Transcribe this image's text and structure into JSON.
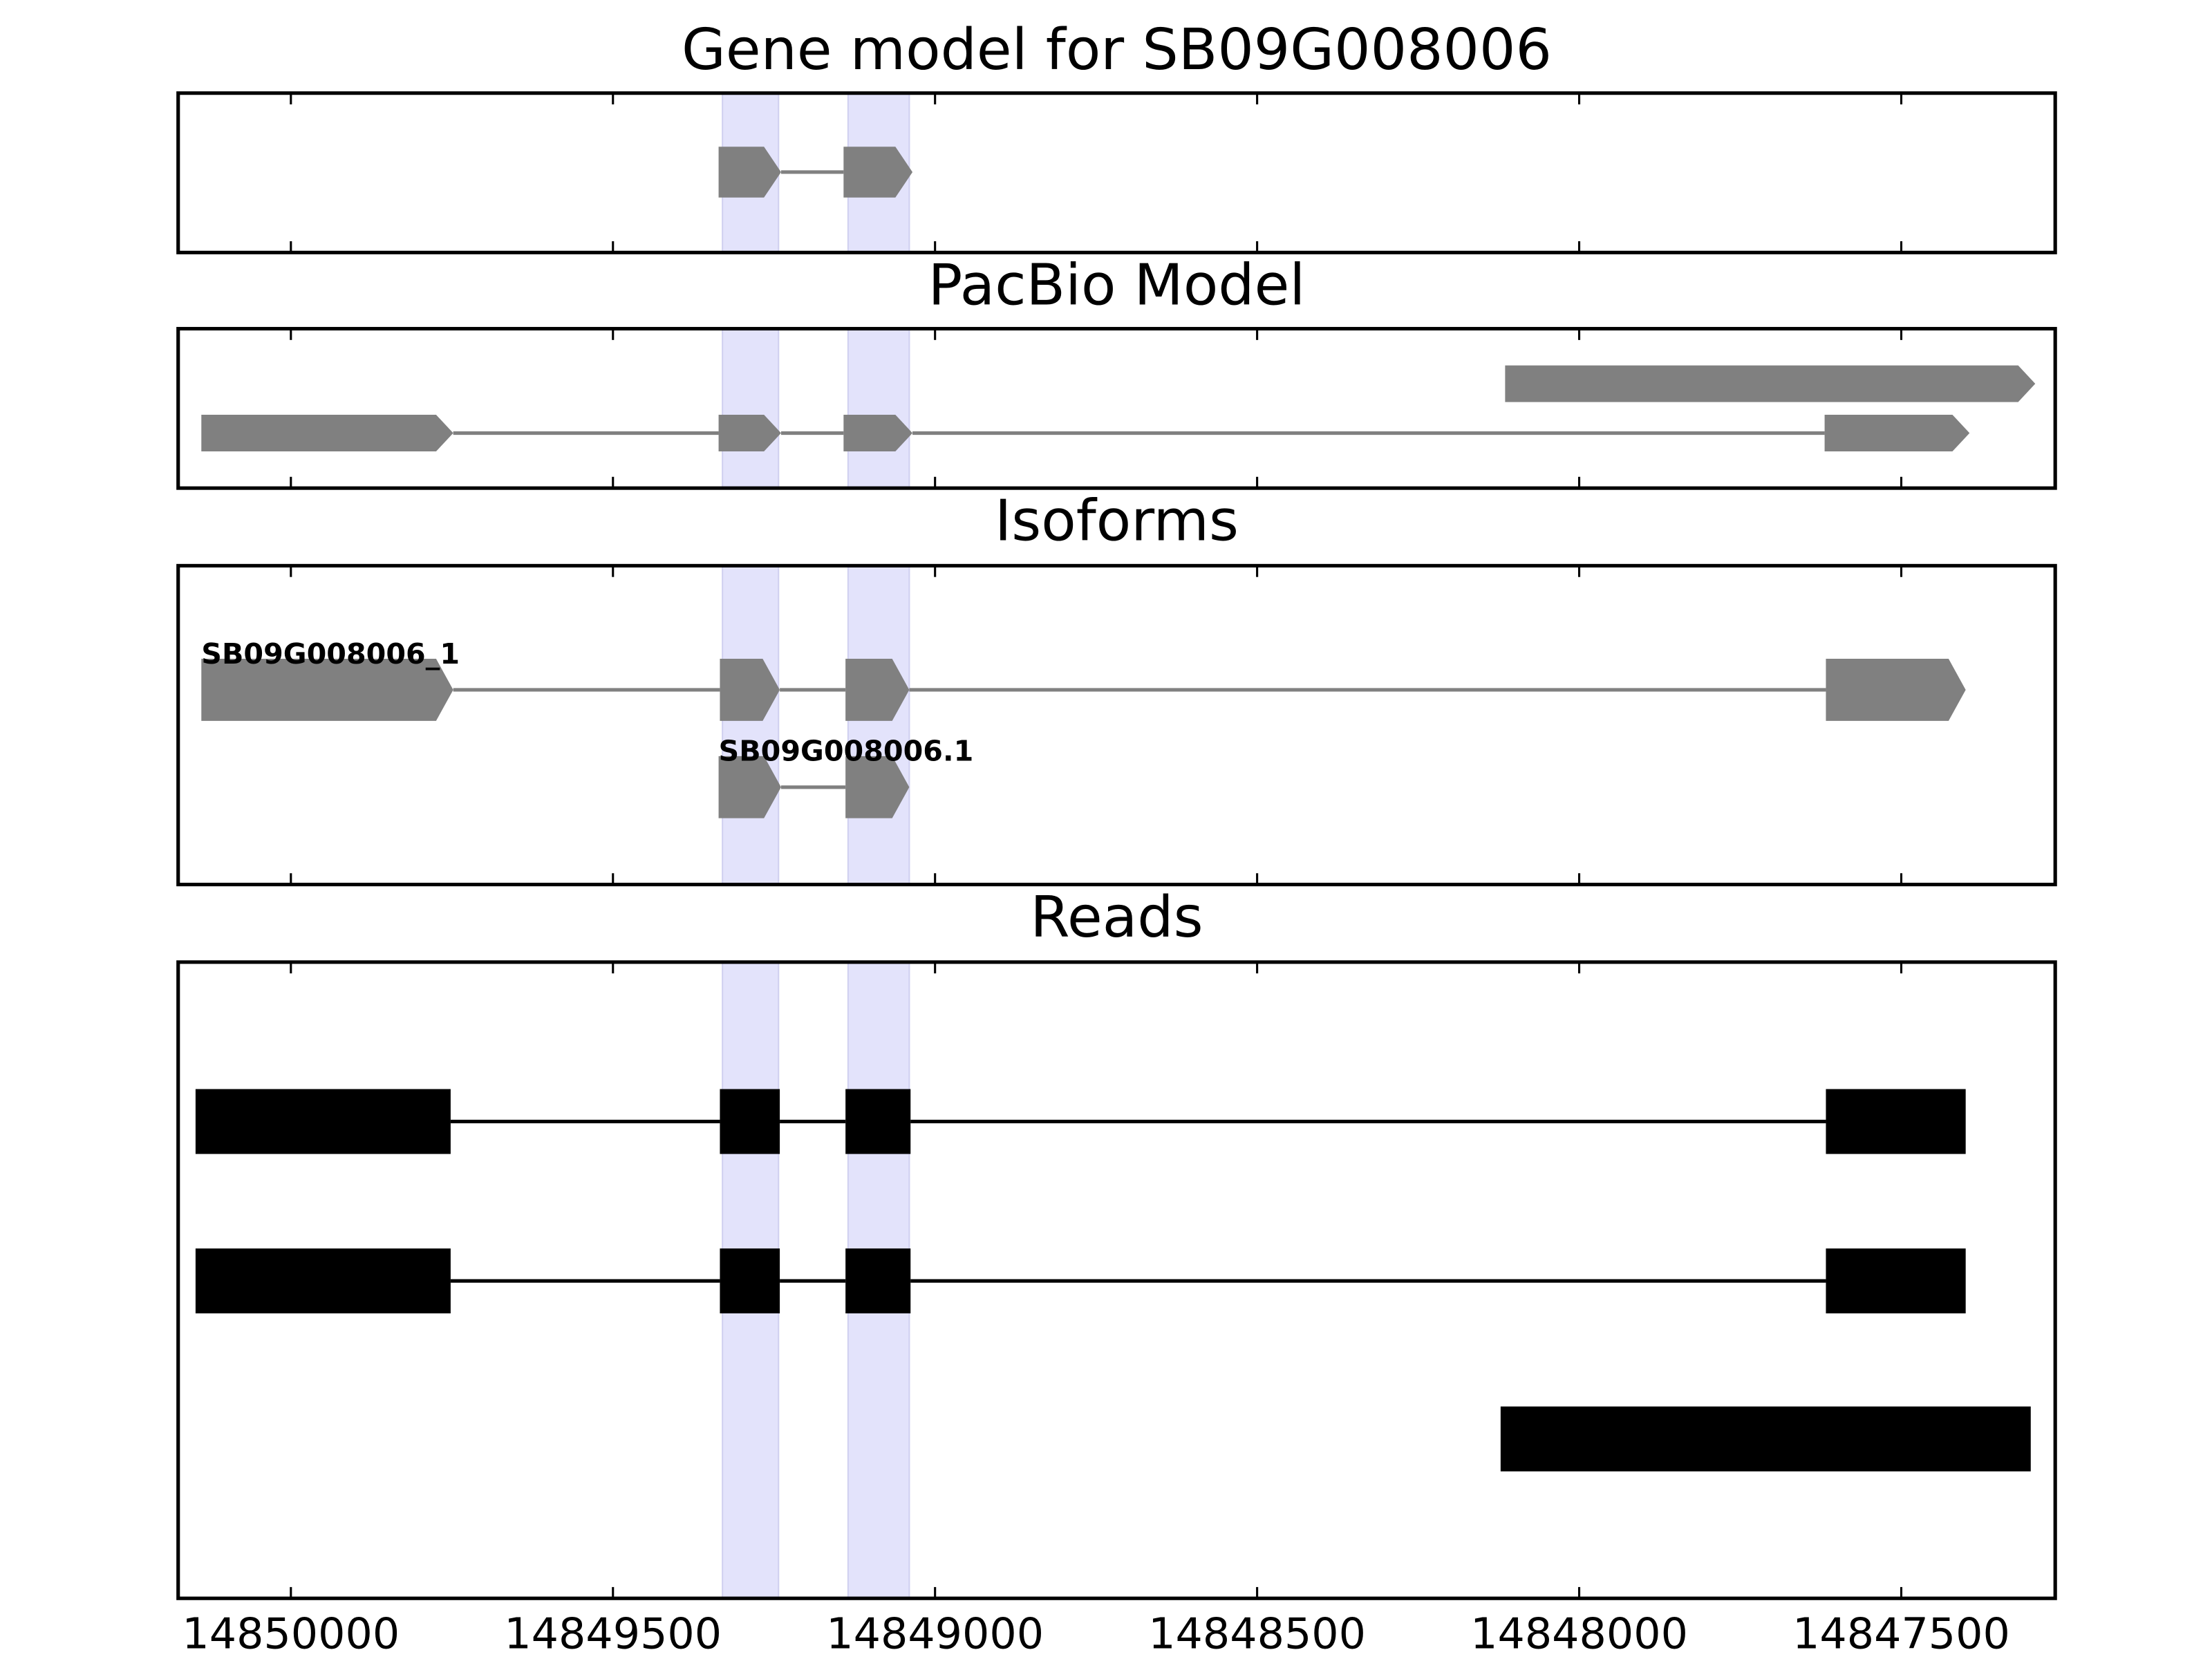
{
  "chart_data": [
    {
      "type": "gene_track",
      "title": "Gene model for SB09G008006",
      "color": "#808080",
      "arrows": true,
      "xlim": [
        14850175,
        14847261
      ],
      "xticks": [
        14850000,
        14849500,
        14849000,
        14848500,
        14848000,
        14847500
      ],
      "highlights": [
        [
          14849330,
          14849243
        ],
        [
          14849135,
          14849040
        ]
      ],
      "tracks": [
        {
          "exons": [
            [
              14849336,
              14849239
            ],
            [
              14849142,
              14849035
            ]
          ]
        }
      ]
    },
    {
      "type": "gene_track",
      "title": "PacBio Model",
      "color": "#808080",
      "arrows": true,
      "xlim": [
        14850175,
        14847261
      ],
      "xticks": [
        14850000,
        14849500,
        14849000,
        14848500,
        14848000,
        14847500
      ],
      "highlights": [
        [
          14849330,
          14849243
        ],
        [
          14849135,
          14849040
        ]
      ],
      "tracks": [
        {
          "exons": [
            [
              14848115,
              14847292
            ]
          ]
        },
        {
          "exons": [
            [
              14850139,
              14849748
            ],
            [
              14849336,
              14849239
            ],
            [
              14849142,
              14849035
            ],
            [
              14847619,
              14847394
            ]
          ]
        }
      ]
    },
    {
      "type": "gene_track",
      "title": "Isoforms",
      "color": "#808080",
      "arrows": true,
      "xlim": [
        14850175,
        14847261
      ],
      "xticks": [
        14850000,
        14849500,
        14849000,
        14848500,
        14848000,
        14847500
      ],
      "highlights": [
        [
          14849330,
          14849243
        ],
        [
          14849135,
          14849040
        ]
      ],
      "tracks": [
        {
          "name": "SB09G008006_1",
          "exons": [
            [
              14850139,
              14849748
            ],
            [
              14849334,
              14849241
            ],
            [
              14849139,
              14849040
            ],
            [
              14847617,
              14847400
            ]
          ]
        },
        {
          "name": "SB09G008006.1",
          "exons": [
            [
              14849336,
              14849239
            ],
            [
              14849139,
              14849040
            ]
          ]
        }
      ]
    },
    {
      "type": "gene_track",
      "title": "Reads",
      "color": "#000000",
      "arrows": false,
      "xlim": [
        14850175,
        14847261
      ],
      "xticks": [
        14850000,
        14849500,
        14849000,
        14848500,
        14848000,
        14847500
      ],
      "highlights": [
        [
          14849330,
          14849243
        ],
        [
          14849135,
          14849040
        ]
      ],
      "tracks": [
        {
          "exons": [
            [
              14850148,
              14849752
            ],
            [
              14849334,
              14849241
            ],
            [
              14849139,
              14849038
            ],
            [
              14847617,
              14847400
            ]
          ]
        },
        {
          "exons": [
            [
              14850148,
              14849752
            ],
            [
              14849334,
              14849241
            ],
            [
              14849139,
              14849038
            ],
            [
              14847617,
              14847400
            ]
          ]
        },
        {
          "exons": [
            [
              14848122,
              14847299
            ]
          ]
        }
      ]
    }
  ]
}
